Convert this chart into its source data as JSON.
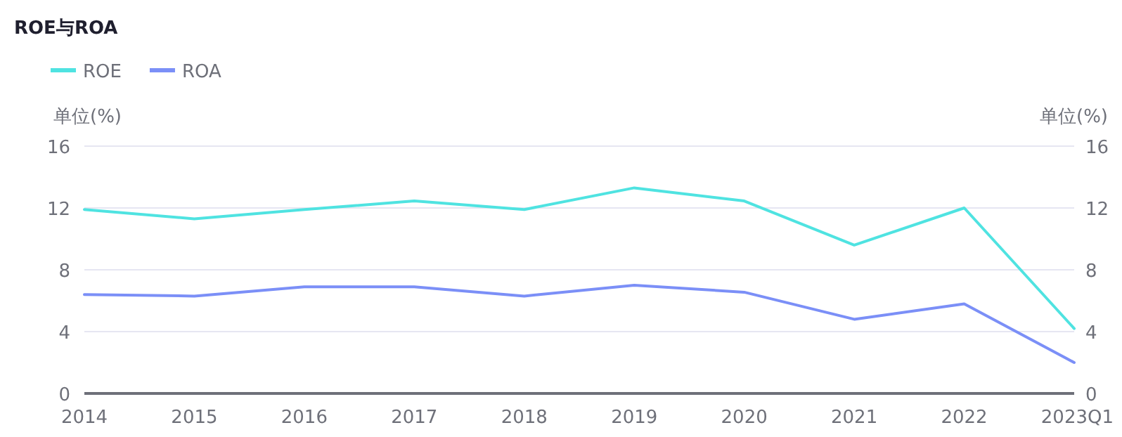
{
  "chart_data": {
    "type": "line",
    "title": "ROE与ROA",
    "ylabel": "单位(%)",
    "y2label": "单位(%)",
    "categories": [
      "2014",
      "2015",
      "2016",
      "2017",
      "2018",
      "2019",
      "2020",
      "2021",
      "2022",
      "2023Q1"
    ],
    "series": [
      {
        "name": "ROE",
        "color": "#4fe3e1",
        "values": [
          11.9,
          11.3,
          11.9,
          12.45,
          11.9,
          13.3,
          12.45,
          9.6,
          12.0,
          4.2
        ]
      },
      {
        "name": "ROA",
        "color": "#7b8ff7",
        "values": [
          6.4,
          6.3,
          6.9,
          6.9,
          6.3,
          7.0,
          6.55,
          4.8,
          5.8,
          2.0
        ]
      }
    ],
    "ylim": [
      0,
      16
    ],
    "yticks": [
      0,
      4,
      8,
      12,
      16
    ],
    "y2lim": [
      0,
      16
    ],
    "y2ticks": [
      0,
      4,
      8,
      12,
      16
    ],
    "grid": "y",
    "legend": "top left"
  }
}
